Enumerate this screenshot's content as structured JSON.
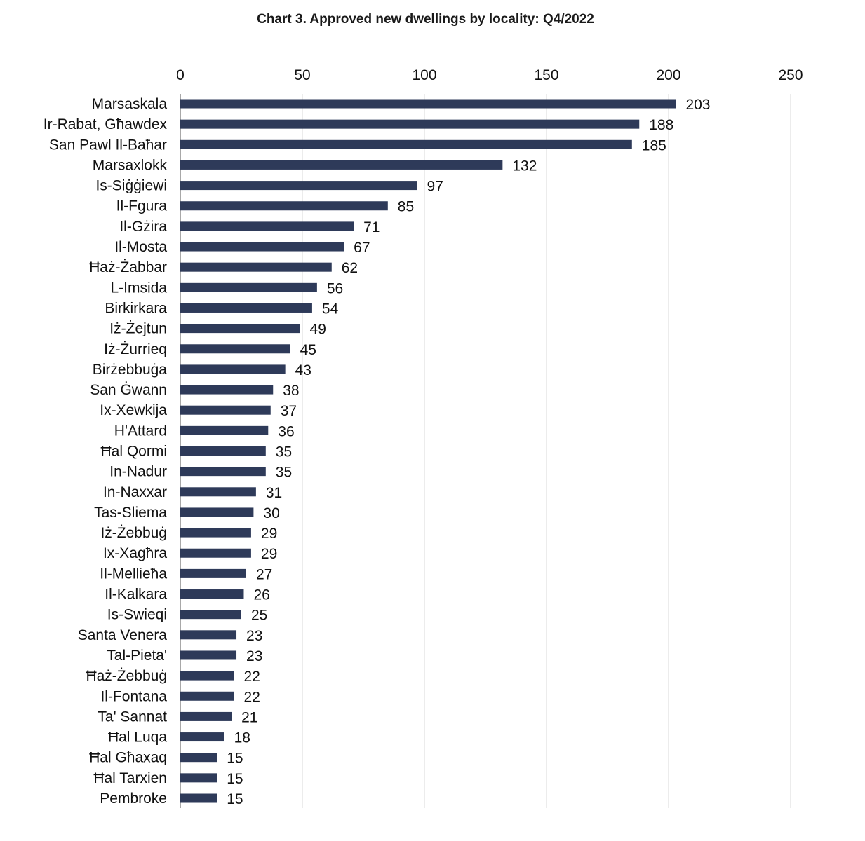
{
  "chart_data": {
    "type": "bar",
    "orientation": "horizontal",
    "title": "Chart 3. Approved new dwellings by locality: Q4/2022",
    "xlabel": "",
    "ylabel": "",
    "xlim": [
      0,
      250
    ],
    "xticks": [
      0,
      50,
      100,
      150,
      200,
      250
    ],
    "tick_labels": [
      "0",
      "50",
      "100",
      "150",
      "200",
      "250"
    ],
    "grid": true,
    "axis_position": "top",
    "bar_color": "#2e3a59",
    "categories": [
      "Marsaskala",
      "Ir-Rabat, Għawdex",
      "San Pawl Il-Baħar",
      "Marsaxlokk",
      "Is-Siġġiewi",
      "Il-Fgura",
      "Il-Gżira",
      "Il-Mosta",
      "Ħaż-Żabbar",
      "L-Imsida",
      "Birkirkara",
      "Iż-Żejtun",
      "Iż-Żurrieq",
      "Birżebbuġa",
      "San Ġwann",
      "Ix-Xewkija",
      "H'Attard",
      "Ħal Qormi",
      "In-Nadur",
      "In-Naxxar",
      "Tas-Sliema",
      "Iż-Żebbuġ",
      "Ix-Xagħra",
      "Il-Mellieħa",
      "Il-Kalkara",
      "Is-Swieqi",
      "Santa Venera",
      "Tal-Pieta'",
      "Ħaż-Żebbuġ",
      "Il-Fontana",
      "Ta' Sannat",
      "Ħal Luqa",
      "Ħal Għaxaq",
      "Ħal Tarxien",
      "Pembroke"
    ],
    "values": [
      203,
      188,
      185,
      132,
      97,
      85,
      71,
      67,
      62,
      56,
      54,
      49,
      45,
      43,
      38,
      37,
      36,
      35,
      35,
      31,
      30,
      29,
      29,
      27,
      26,
      25,
      23,
      23,
      22,
      22,
      21,
      18,
      15,
      15,
      15
    ]
  }
}
